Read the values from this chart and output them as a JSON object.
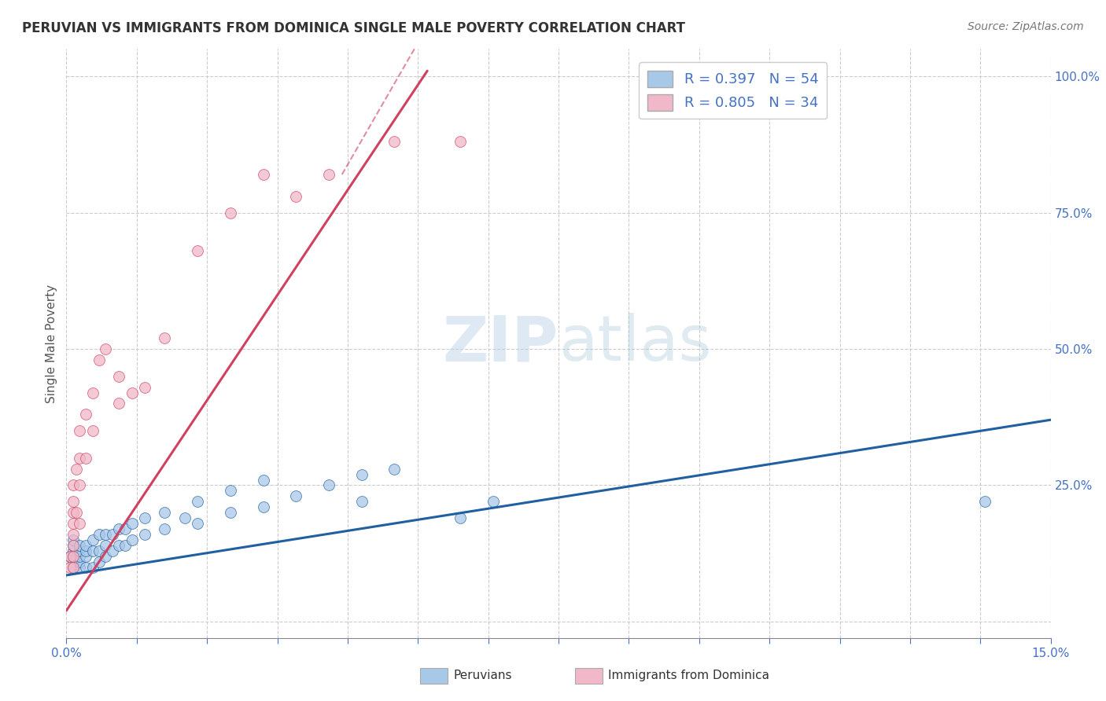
{
  "title": "PERUVIAN VS IMMIGRANTS FROM DOMINICA SINGLE MALE POVERTY CORRELATION CHART",
  "source": "Source: ZipAtlas.com",
  "ylabel_label": "Single Male Poverty",
  "legend_label1": "Peruvians",
  "legend_label2": "Immigrants from Dominica",
  "R1": 0.397,
  "N1": 54,
  "R2": 0.805,
  "N2": 34,
  "xlim": [
    0.0,
    0.15
  ],
  "ylim": [
    -0.03,
    1.05
  ],
  "color_blue": "#a8c8e8",
  "color_pink": "#f0b8c8",
  "line_color_blue": "#2060a0",
  "line_color_pink": "#d04060",
  "watermark": "ZIPatlas",
  "bg_color": "#ffffff",
  "grid_color": "#cccccc",
  "blue_scatter_x": [
    0.0005,
    0.001,
    0.001,
    0.001,
    0.001,
    0.001,
    0.001,
    0.001,
    0.0015,
    0.002,
    0.002,
    0.002,
    0.002,
    0.002,
    0.003,
    0.003,
    0.003,
    0.003,
    0.004,
    0.004,
    0.004,
    0.005,
    0.005,
    0.005,
    0.006,
    0.006,
    0.006,
    0.007,
    0.007,
    0.008,
    0.008,
    0.009,
    0.009,
    0.01,
    0.01,
    0.012,
    0.012,
    0.015,
    0.015,
    0.018,
    0.02,
    0.02,
    0.025,
    0.025,
    0.03,
    0.03,
    0.035,
    0.04,
    0.045,
    0.045,
    0.05,
    0.06,
    0.065,
    0.14
  ],
  "blue_scatter_y": [
    0.12,
    0.1,
    0.11,
    0.12,
    0.13,
    0.14,
    0.15,
    0.1,
    0.12,
    0.1,
    0.11,
    0.12,
    0.13,
    0.14,
    0.1,
    0.12,
    0.13,
    0.14,
    0.1,
    0.13,
    0.15,
    0.11,
    0.13,
    0.16,
    0.12,
    0.14,
    0.16,
    0.13,
    0.16,
    0.14,
    0.17,
    0.14,
    0.17,
    0.15,
    0.18,
    0.16,
    0.19,
    0.17,
    0.2,
    0.19,
    0.18,
    0.22,
    0.2,
    0.24,
    0.21,
    0.26,
    0.23,
    0.25,
    0.27,
    0.22,
    0.28,
    0.19,
    0.22,
    0.22
  ],
  "pink_scatter_x": [
    0.0005,
    0.0005,
    0.001,
    0.001,
    0.001,
    0.001,
    0.001,
    0.001,
    0.001,
    0.001,
    0.0015,
    0.0015,
    0.002,
    0.002,
    0.002,
    0.002,
    0.003,
    0.003,
    0.004,
    0.004,
    0.005,
    0.006,
    0.008,
    0.008,
    0.01,
    0.012,
    0.015,
    0.02,
    0.025,
    0.03,
    0.035,
    0.04,
    0.05,
    0.06
  ],
  "pink_scatter_y": [
    0.1,
    0.12,
    0.1,
    0.12,
    0.14,
    0.16,
    0.18,
    0.2,
    0.22,
    0.25,
    0.2,
    0.28,
    0.18,
    0.25,
    0.3,
    0.35,
    0.3,
    0.38,
    0.35,
    0.42,
    0.48,
    0.5,
    0.4,
    0.45,
    0.42,
    0.43,
    0.52,
    0.68,
    0.75,
    0.82,
    0.78,
    0.82,
    0.88,
    0.88
  ],
  "blue_line_x": [
    0.0,
    0.15
  ],
  "blue_line_y": [
    0.085,
    0.37
  ],
  "pink_line_x": [
    0.0,
    0.055
  ],
  "pink_line_y": [
    0.02,
    1.01
  ]
}
